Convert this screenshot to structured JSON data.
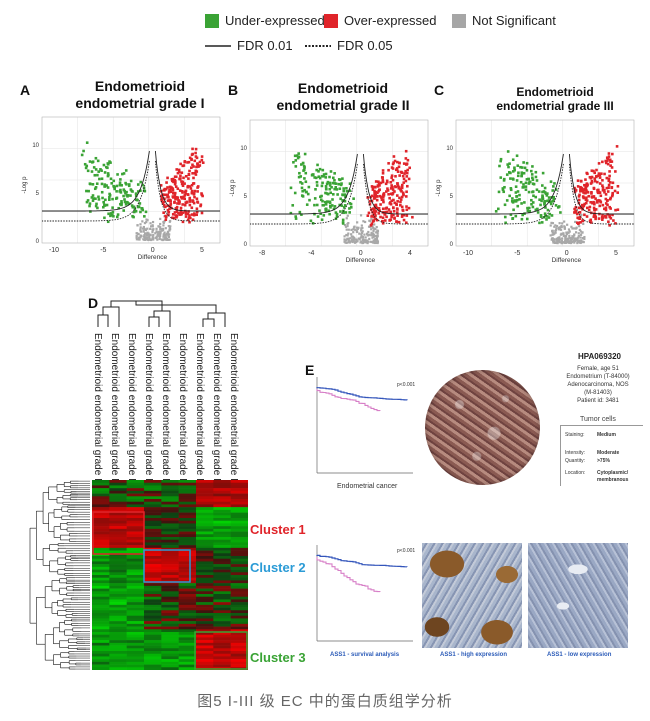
{
  "legend": {
    "items": [
      {
        "label": "Under-expressed",
        "color": "#3aa335"
      },
      {
        "label": "Over-expressed",
        "color": "#e0242a"
      },
      {
        "label": "Not Significant",
        "color": "#a6a6a6"
      }
    ],
    "lines": [
      {
        "label": "FDR 0.01",
        "style": "solid"
      },
      {
        "label": "FDR 0.05",
        "style": "dotted"
      }
    ]
  },
  "panels": {
    "A": {
      "letter": "A",
      "title_line1": "Endometrioid",
      "title_line2": "endometrial grade I",
      "xlabel": "Difference",
      "ylabel": "-Log p",
      "xticks": [
        "-10",
        "-5",
        "0",
        "5"
      ],
      "yticks": [
        "10",
        "5",
        "0"
      ]
    },
    "B": {
      "letter": "B",
      "title_line1": "Endometrioid",
      "title_line2": "endometrial grade II",
      "xlabel": "Difference",
      "ylabel": "-Log p",
      "xticks": [
        "-8",
        "-4",
        "0",
        "4"
      ],
      "yticks": [
        "10",
        "5",
        "0"
      ]
    },
    "C": {
      "letter": "C",
      "title_line1": "Endometrioid",
      "title_line2": "endometrial grade III",
      "xlabel": "Difference",
      "ylabel": "-Log p",
      "xticks": [
        "-10",
        "-5",
        "0",
        "5"
      ],
      "yticks": [
        "10",
        "5",
        "0"
      ]
    },
    "D": {
      "letter": "D"
    },
    "E": {
      "letter": "E"
    }
  },
  "heatmap": {
    "columns": [
      "Endometrioid endometrial grade III",
      "Endometrioid endometrial grade III",
      "Endometrioid endometrial grade III",
      "Endometrioid endometrial grade II",
      "Endometrioid endometrial grade II",
      "Endometrioid endometrial grade II",
      "Endometrioid endometrial grade I",
      "Endometrioid endometrial grade I",
      "Endometrioid endometrial grade I"
    ],
    "clusters": [
      {
        "label": "Cluster 1",
        "color": "#e0242a"
      },
      {
        "label": "Cluster 2",
        "color": "#2b9bd6"
      },
      {
        "label": "Cluster 3",
        "color": "#3aa335"
      }
    ]
  },
  "panelE": {
    "km1": {
      "pvalue": "p<0.001",
      "caption": "Endometrial cancer"
    },
    "km2": {
      "pvalue": "p<0.001",
      "caption": "ASS1 - survival analysis"
    },
    "antibody": "HPA069320",
    "patient": [
      "Female, age 51",
      "Endometrium (T-84000)",
      "Adenocarcinoma, NOS",
      "(M-81403)",
      "Patient id: 3481"
    ],
    "tumor_cells_header": "Tumor cells",
    "fields": [
      {
        "key": "Staining:",
        "value": "Medium"
      },
      {
        "key": "Intensity:",
        "value": "Moderate"
      },
      {
        "key": "Quantity:",
        "value": ">75%"
      },
      {
        "key": "Location:",
        "value": "Cytoplasmic/ membranous"
      }
    ],
    "high_caption": "ASS1 - high expression",
    "low_caption": "ASS1 - low expression"
  },
  "caption": "图5 I-III 级 EC 中的蛋白质组学分析"
}
